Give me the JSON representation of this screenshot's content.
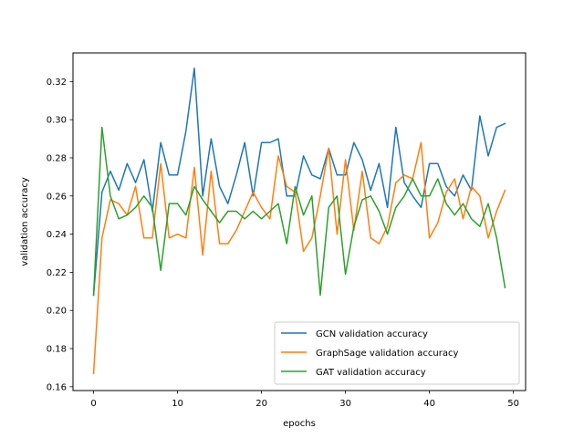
{
  "chart_data": {
    "type": "line",
    "title": "",
    "xlabel": "epochs",
    "ylabel": "validation accuracy",
    "xlim": [
      -2.45,
      51.45
    ],
    "ylim": [
      0.158,
      0.335
    ],
    "xticks": [
      0,
      10,
      20,
      30,
      40,
      50
    ],
    "yticks": [
      0.16,
      0.18,
      0.2,
      0.22,
      0.24,
      0.26,
      0.28,
      0.3,
      0.32
    ],
    "ytick_labels": [
      "0.16",
      "0.18",
      "0.20",
      "0.22",
      "0.24",
      "0.26",
      "0.28",
      "0.30",
      "0.32"
    ],
    "grid": false,
    "legend_position": "lower-right",
    "x": [
      0,
      1,
      2,
      3,
      4,
      5,
      6,
      7,
      8,
      9,
      10,
      11,
      12,
      13,
      14,
      15,
      16,
      17,
      18,
      19,
      20,
      21,
      22,
      23,
      24,
      25,
      26,
      27,
      28,
      29,
      30,
      31,
      32,
      33,
      34,
      35,
      36,
      37,
      38,
      39,
      40,
      41,
      42,
      43,
      44,
      45,
      46,
      47,
      48,
      49
    ],
    "series": [
      {
        "name": "GCN validation accuracy",
        "color": "#1f77b4",
        "values": [
          0.208,
          0.262,
          0.273,
          0.263,
          0.277,
          0.267,
          0.279,
          0.252,
          0.288,
          0.271,
          0.271,
          0.294,
          0.327,
          0.26,
          0.29,
          0.265,
          0.256,
          0.271,
          0.288,
          0.26,
          0.288,
          0.288,
          0.29,
          0.26,
          0.26,
          0.281,
          0.271,
          0.269,
          0.285,
          0.271,
          0.271,
          0.288,
          0.279,
          0.263,
          0.277,
          0.254,
          0.296,
          0.267,
          0.26,
          0.254,
          0.277,
          0.277,
          0.265,
          0.26,
          0.271,
          0.263,
          0.302,
          0.281,
          0.296,
          0.298
        ]
      },
      {
        "name": "GraphSage validation accuracy",
        "color": "#ff7f0e",
        "values": [
          0.167,
          0.238,
          0.258,
          0.256,
          0.25,
          0.265,
          0.238,
          0.238,
          0.277,
          0.238,
          0.24,
          0.238,
          0.275,
          0.229,
          0.273,
          0.235,
          0.235,
          0.242,
          0.252,
          0.262,
          0.254,
          0.248,
          0.281,
          0.265,
          0.262,
          0.231,
          0.238,
          0.26,
          0.285,
          0.24,
          0.279,
          0.242,
          0.273,
          0.238,
          0.235,
          0.244,
          0.267,
          0.271,
          0.269,
          0.288,
          0.238,
          0.246,
          0.262,
          0.269,
          0.248,
          0.265,
          0.26,
          0.238,
          0.252,
          0.263
        ]
      },
      {
        "name": "GAT validation accuracy",
        "color": "#2ca02c",
        "values": [
          0.208,
          0.296,
          0.26,
          0.248,
          0.25,
          0.254,
          0.26,
          0.254,
          0.221,
          0.256,
          0.256,
          0.25,
          0.265,
          0.258,
          0.252,
          0.246,
          0.252,
          0.252,
          0.248,
          0.252,
          0.248,
          0.252,
          0.256,
          0.235,
          0.265,
          0.25,
          0.26,
          0.208,
          0.254,
          0.26,
          0.219,
          0.244,
          0.258,
          0.26,
          0.252,
          0.24,
          0.254,
          0.26,
          0.269,
          0.26,
          0.26,
          0.269,
          0.256,
          0.25,
          0.256,
          0.248,
          0.244,
          0.256,
          0.238,
          0.212
        ]
      }
    ]
  }
}
